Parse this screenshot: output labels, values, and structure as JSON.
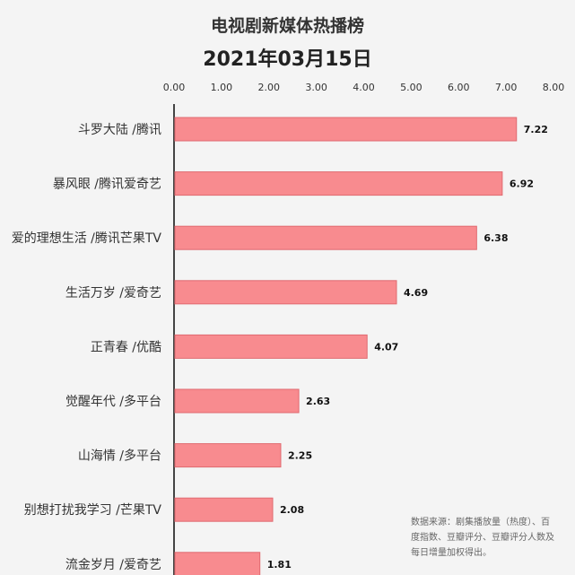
{
  "chart_data": {
    "type": "bar",
    "orientation": "horizontal",
    "title": "电视剧新媒体热播榜",
    "subtitle": "2021年03月15日",
    "categories": [
      "斗罗大陆 /腾讯",
      "暴风眼 /腾讯爱奇艺",
      "爱的理想生活 /腾讯芒果TV",
      "生活万岁 /爱奇艺",
      "正青春 /优酷",
      "觉醒年代 /多平台",
      "山海情 /多平台",
      "别想打扰我学习 /芒果TV",
      "流金岁月 /爱奇艺"
    ],
    "values": [
      7.22,
      6.92,
      6.38,
      4.69,
      4.07,
      2.63,
      2.25,
      2.08,
      1.81
    ],
    "value_labels": [
      "7.22",
      "6.92",
      "6.38",
      "4.69",
      "4.07",
      "2.63",
      "2.25",
      "2.08",
      "1.81"
    ],
    "xlim": [
      0,
      8
    ],
    "x_ticks": [
      "0.00",
      "1.00",
      "2.00",
      "3.00",
      "4.00",
      "5.00",
      "6.00",
      "7.00",
      "8.00"
    ],
    "x_axis_position": "top",
    "grid": false,
    "legend": "none",
    "colors": {
      "bar_fill": "#f88b8f",
      "bar_stroke": "#e06a70",
      "axis": "#444444",
      "text": "#333333"
    }
  },
  "source_note": "数据来源：剧集播放量（热度）、百度指数、豆瓣评分、豆瓣评分人数及每日增量加权得出。"
}
